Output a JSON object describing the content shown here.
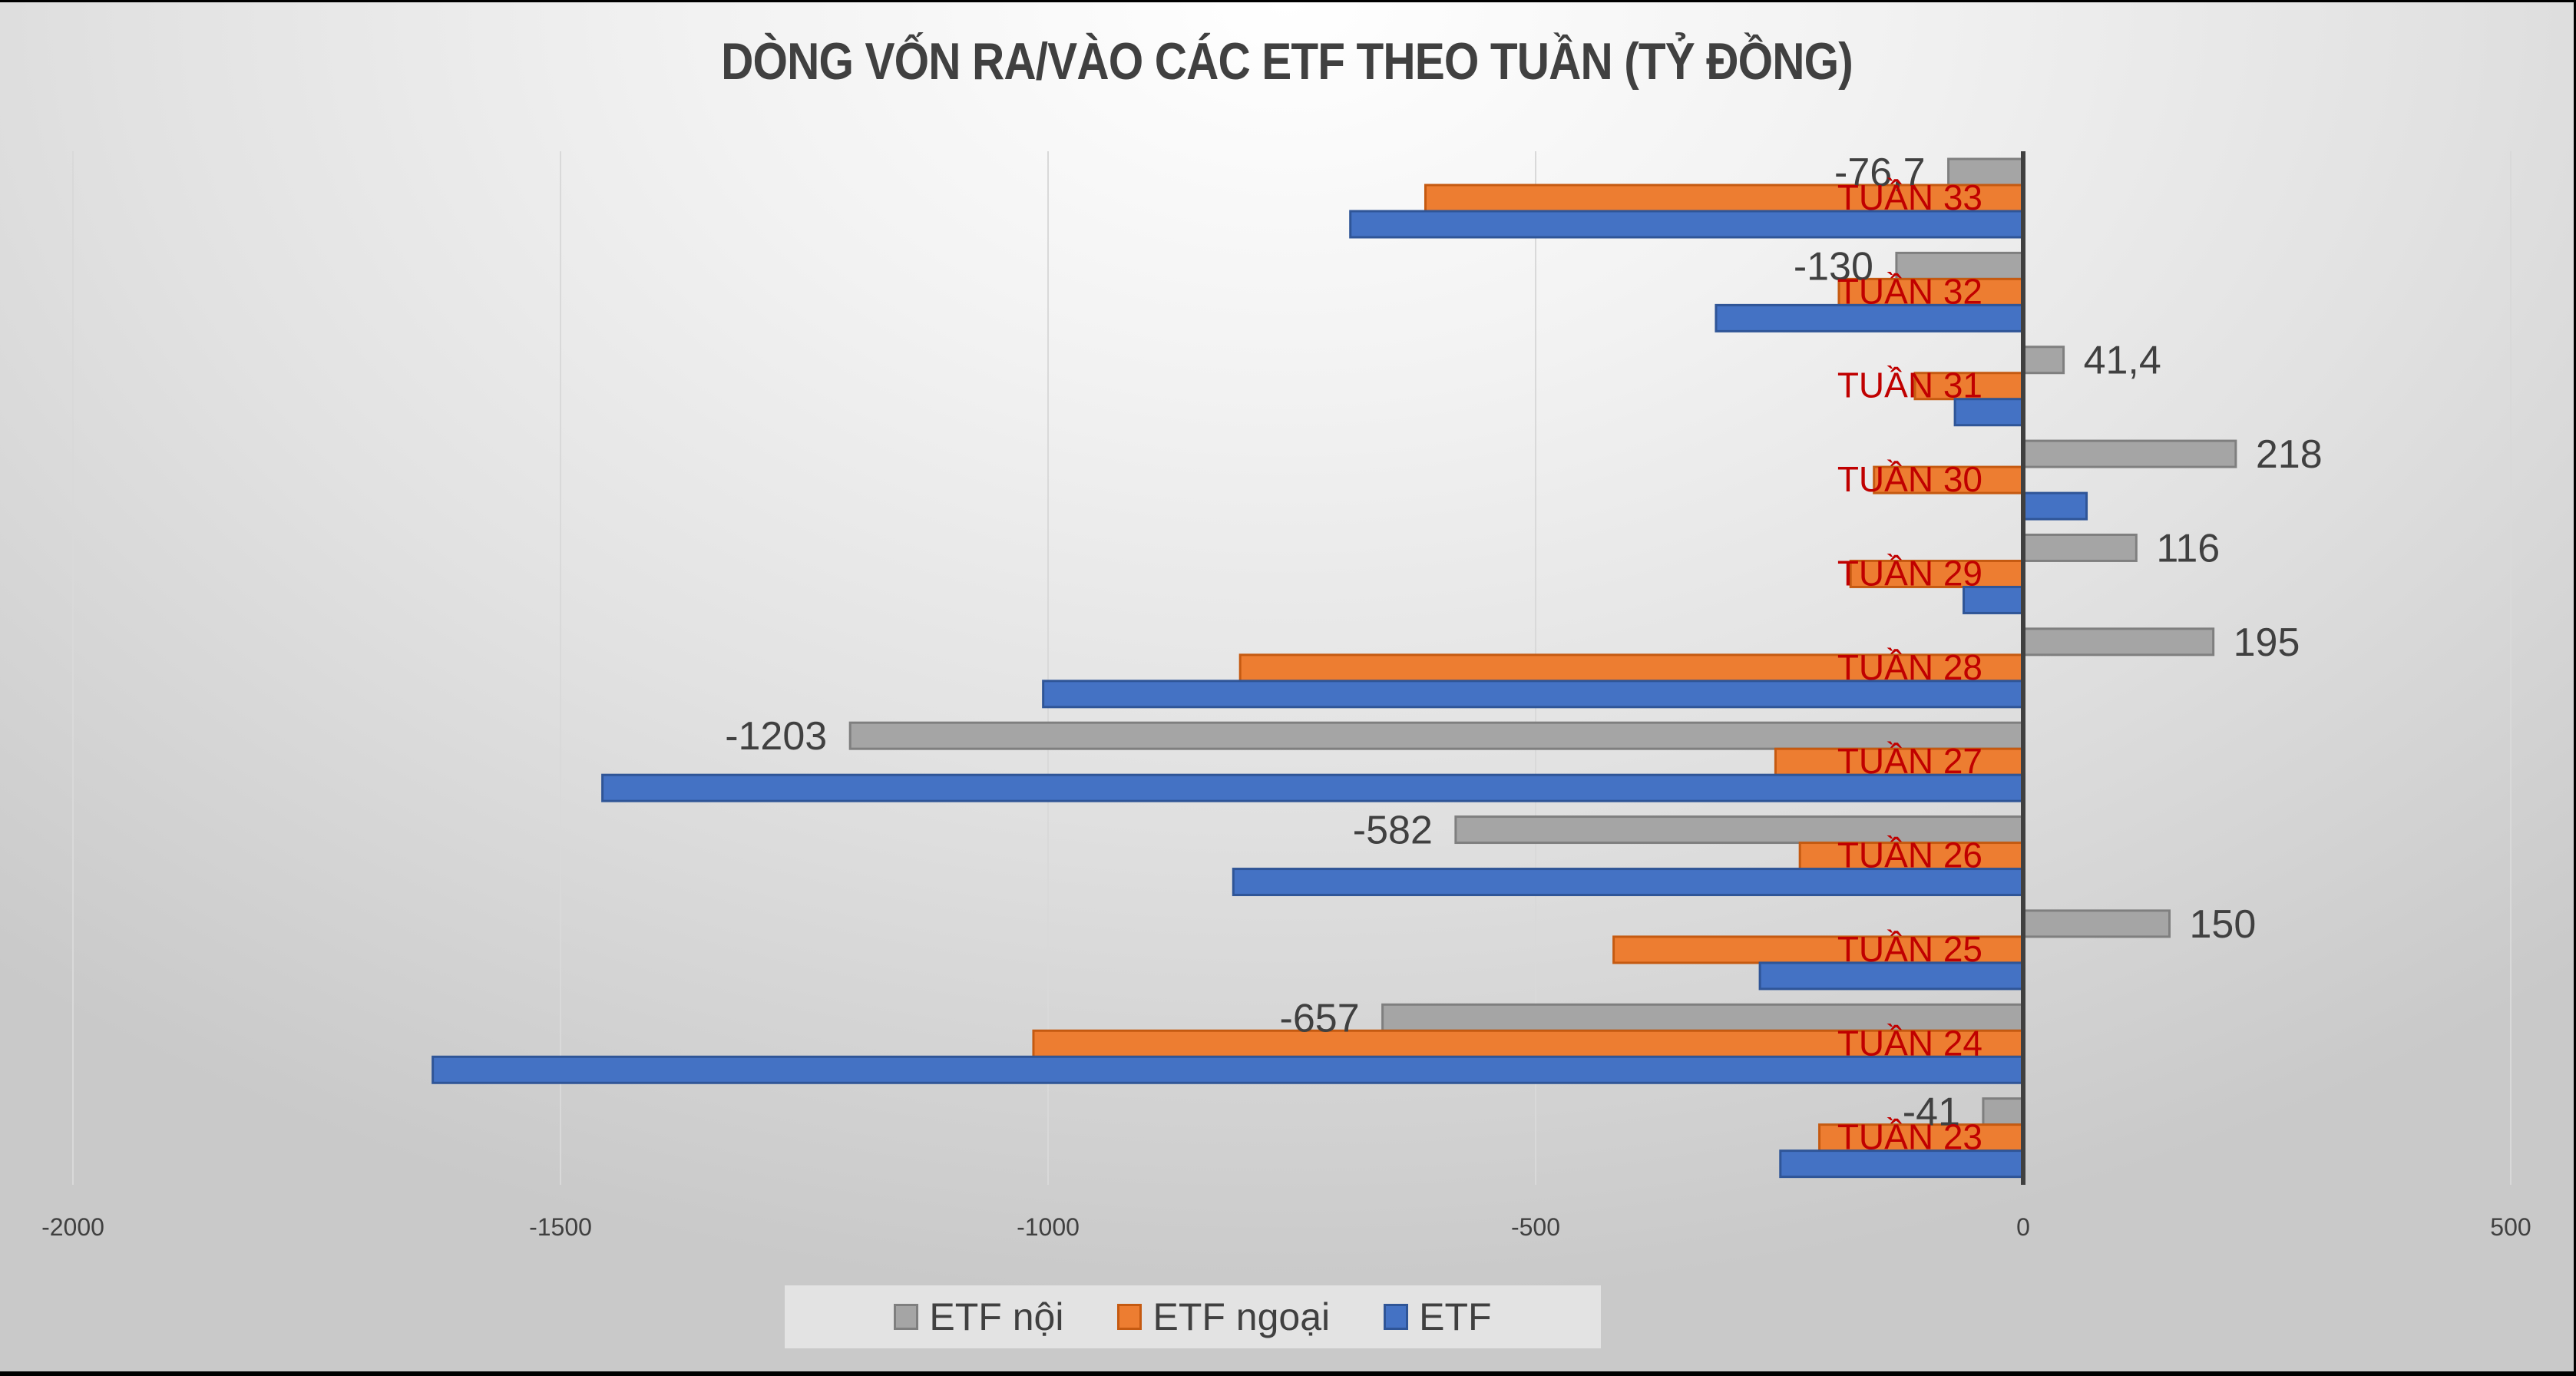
{
  "chart_data": {
    "type": "bar",
    "orientation": "horizontal",
    "title": "DÒNG VỐN RA/VÀO CÁC ETF THEO TUẦN (TỶ ĐỒNG)",
    "xlabel": "",
    "ylabel": "",
    "xlim": [
      -2000,
      500
    ],
    "x_ticks": [
      -2000,
      -1500,
      -1000,
      -500,
      0,
      500
    ],
    "x_tick_labels": [
      "-2000",
      "-1500",
      "-1000",
      "-500",
      "0",
      "500"
    ],
    "grid": "vertical major gridlines",
    "legend_position": "bottom",
    "categories": [
      "TUẦN 33",
      "TUẦN 32",
      "TUẦN 31",
      "TUẦN 30",
      "TUẦN 29",
      "TUẦN 28",
      "TUẦN 27",
      "TUẦN 26",
      "TUẦN 25",
      "TUẦN 24",
      "TUẦN 23"
    ],
    "series": [
      {
        "name": "ETF nội",
        "color": "#a5a5a5",
        "border": "#7f7f7f",
        "values": [
          -76.7,
          -130,
          41.4,
          218,
          116,
          195,
          -1203,
          -582,
          150,
          -657,
          -41
        ],
        "labels": [
          "-76,7",
          "-130",
          "41,4",
          "218",
          "116",
          "195",
          "-1203",
          "-582",
          "150",
          "-657",
          "-41"
        ]
      },
      {
        "name": "ETF ngoại",
        "color": "#ed7d31",
        "border": "#c55a11",
        "values": [
          -613,
          -189,
          -111,
          -153,
          -177,
          -803,
          -254,
          -229,
          -420,
          -1015,
          -209
        ]
      },
      {
        "name": "ETF",
        "color": "#4472c4",
        "border": "#2f5597",
        "values": [
          -690,
          -315,
          -70,
          65,
          -61,
          -1005,
          -1457,
          -810,
          -270,
          -1631,
          -249
        ]
      }
    ]
  },
  "legend": {
    "items": [
      {
        "label": "ETF nội",
        "color": "#a5a5a5",
        "border": "#7f7f7f"
      },
      {
        "label": "ETF ngoại",
        "color": "#ed7d31",
        "border": "#c55a11"
      },
      {
        "label": "ETF",
        "color": "#4472c4",
        "border": "#2f5597"
      }
    ]
  },
  "colors": {
    "title": "#404040",
    "category_label": "#c00000",
    "axis": "#404040",
    "gridline": "#d9d9d9"
  }
}
